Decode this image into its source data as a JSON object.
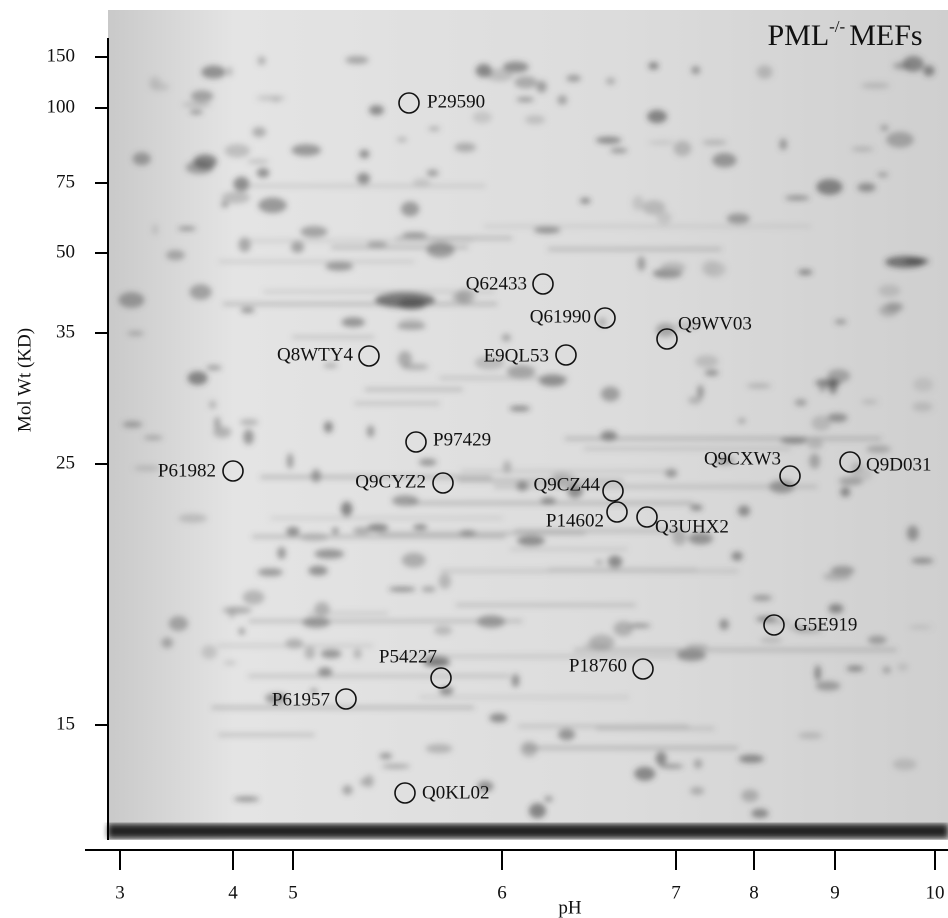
{
  "title": {
    "main": "PML",
    "superscript": "-/-",
    "suffix": "MEFs"
  },
  "y_axis": {
    "label": "Mol Wt (KD)",
    "ticks": [
      150,
      100,
      75,
      50,
      35,
      25,
      15
    ]
  },
  "x_axis": {
    "label": "pH",
    "ticks": [
      3,
      4,
      5,
      6,
      7,
      8,
      9,
      10
    ]
  },
  "spots": [
    "P29590",
    "Q62433",
    "Q61990",
    "Q9WV03",
    "Q8WTY4",
    "E9QL53",
    "P97429",
    "P61982",
    "Q9CYZ2",
    "Q9CZ44",
    "P14602",
    "Q3UHX2",
    "Q9CXW3",
    "Q9D031",
    "G5E919",
    "P54227",
    "P18760",
    "P61957",
    "Q0KL02"
  ]
}
